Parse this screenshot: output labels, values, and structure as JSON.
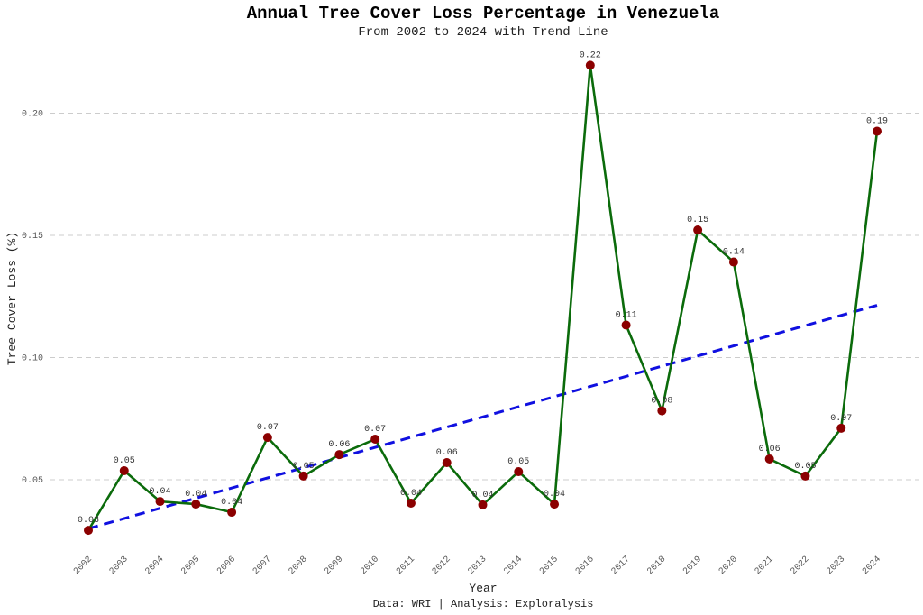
{
  "chart_data": {
    "type": "line",
    "title": "Annual Tree Cover Loss Percentage in Venezuela",
    "subtitle": "From 2002 to 2024 with Trend Line",
    "xlabel": "Year",
    "ylabel": "Tree Cover Loss (%)",
    "caption": "Data: WRI | Analysis: Exploralysis",
    "x": [
      "2002",
      "2003",
      "2004",
      "2005",
      "2006",
      "2007",
      "2008",
      "2009",
      "2010",
      "2011",
      "2012",
      "2013",
      "2014",
      "2015",
      "2016",
      "2017",
      "2018",
      "2019",
      "2020",
      "2021",
      "2022",
      "2023",
      "2024"
    ],
    "series": [
      {
        "name": "Tree Cover Loss",
        "color": "#0b6b0b",
        "marker_color": "#8b0000",
        "values": [
          0.0293,
          0.0537,
          0.0411,
          0.04,
          0.0367,
          0.0673,
          0.0515,
          0.0603,
          0.0666,
          0.0404,
          0.057,
          0.0397,
          0.0533,
          0.04,
          0.2196,
          0.1133,
          0.0782,
          0.1522,
          0.1391,
          0.0585,
          0.0515,
          0.0711,
          0.1926
        ],
        "labels": [
          "0.03",
          "0.05",
          "0.04",
          "0.04",
          "0.04",
          "0.07",
          "0.05",
          "0.06",
          "0.07",
          "0.04",
          "0.06",
          "0.04",
          "0.05",
          "0.04",
          "0.22",
          "0.11",
          "0.08",
          "0.15",
          "0.14",
          "0.06",
          "0.05",
          "0.07",
          "0.19"
        ]
      },
      {
        "name": "Trend Line",
        "color": "#1010e0",
        "style": "dashed",
        "start": 0.03,
        "end": 0.1214
      }
    ],
    "yticks": [
      0.05,
      0.1,
      0.15,
      0.2
    ],
    "ytick_labels": [
      "0.05",
      "0.10",
      "0.15",
      "0.20"
    ],
    "ylim": [
      0.0,
      0.235
    ],
    "grid": "horizontal dashed"
  }
}
